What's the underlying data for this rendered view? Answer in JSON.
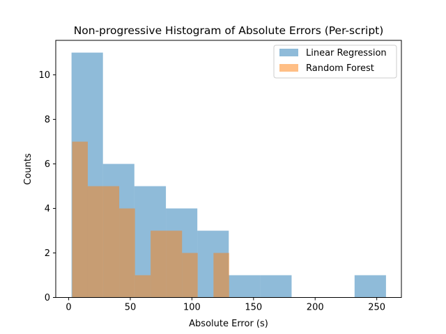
{
  "chart_data": {
    "type": "bar",
    "title": "Non-progressive Histogram of Absolute Errors (Per-script)",
    "xlabel": "Absolute Error (s)",
    "ylabel": "Counts",
    "xlim": [
      -10.5,
      270
    ],
    "ylim": [
      0,
      11.55
    ],
    "xticks": [
      0,
      50,
      100,
      150,
      200,
      250
    ],
    "yticks": [
      0,
      2,
      4,
      6,
      8,
      10
    ],
    "grid": false,
    "legend_position": "top-right",
    "series": [
      {
        "name": "Linear Regression",
        "color": "#1f77b4",
        "alpha": 0.5,
        "bins": [
          {
            "x0": 2.3,
            "x1": 27.8,
            "count": 11
          },
          {
            "x0": 27.8,
            "x1": 53.3,
            "count": 6
          },
          {
            "x0": 53.3,
            "x1": 78.9,
            "count": 5
          },
          {
            "x0": 78.9,
            "x1": 104.4,
            "count": 4
          },
          {
            "x0": 104.4,
            "x1": 129.9,
            "count": 3
          },
          {
            "x0": 129.9,
            "x1": 155.4,
            "count": 1
          },
          {
            "x0": 155.4,
            "x1": 180.9,
            "count": 1
          },
          {
            "x0": 180.9,
            "x1": 206.4,
            "count": 0
          },
          {
            "x0": 206.4,
            "x1": 232.0,
            "count": 0
          },
          {
            "x0": 232.0,
            "x1": 257.5,
            "count": 1
          }
        ]
      },
      {
        "name": "Random Forest",
        "color": "#ff7f0e",
        "alpha": 0.5,
        "bins": [
          {
            "x0": 2.8,
            "x1": 15.5,
            "count": 7
          },
          {
            "x0": 15.5,
            "x1": 28.3,
            "count": 5
          },
          {
            "x0": 28.3,
            "x1": 41.0,
            "count": 5
          },
          {
            "x0": 41.0,
            "x1": 53.8,
            "count": 4
          },
          {
            "x0": 53.8,
            "x1": 66.5,
            "count": 1
          },
          {
            "x0": 66.5,
            "x1": 79.2,
            "count": 3
          },
          {
            "x0": 79.2,
            "x1": 92.0,
            "count": 3
          },
          {
            "x0": 92.0,
            "x1": 104.7,
            "count": 2
          },
          {
            "x0": 104.7,
            "x1": 117.5,
            "count": 0
          },
          {
            "x0": 117.5,
            "x1": 130.2,
            "count": 2
          }
        ]
      }
    ]
  }
}
